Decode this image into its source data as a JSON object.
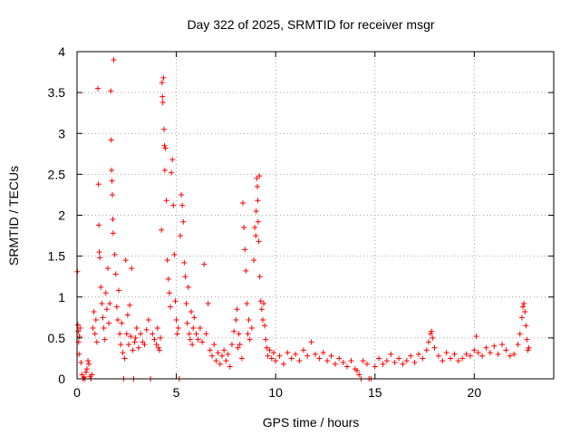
{
  "chart_data": {
    "type": "scatter",
    "title": "Day 322 of 2025, SRMTID for receiver msgr",
    "xlabel": "GPS time / hours",
    "ylabel": "SRMTID / TECUs",
    "xlim": [
      0,
      24
    ],
    "ylim": [
      0,
      4
    ],
    "xticks": [
      0,
      5,
      10,
      15,
      20
    ],
    "yticks": [
      0,
      0.5,
      1,
      1.5,
      2,
      2.5,
      3,
      3.5,
      4
    ],
    "grid": true,
    "marker": "plus",
    "color": "#ff0000",
    "series": [
      {
        "name": "SRMTID",
        "points": [
          [
            0.02,
            1.31
          ],
          [
            0.04,
            0.66
          ],
          [
            0.06,
            0.58
          ],
          [
            0.08,
            0.45
          ],
          [
            0.1,
            0.3
          ],
          [
            0.12,
            0.52
          ],
          [
            0.15,
            0.62
          ],
          [
            0.2,
            0.2
          ],
          [
            0.25,
            0.05
          ],
          [
            0.3,
            0.0
          ],
          [
            0.35,
            0.02
          ],
          [
            0.4,
            0.0
          ],
          [
            0.45,
            0.08
          ],
          [
            0.5,
            0.12
          ],
          [
            0.55,
            0.22
          ],
          [
            0.6,
            0.18
          ],
          [
            0.65,
            0.03
          ],
          [
            0.7,
            0.0
          ],
          [
            0.75,
            0.05
          ],
          [
            0.8,
            0.62
          ],
          [
            0.85,
            0.82
          ],
          [
            0.9,
            0.55
          ],
          [
            0.95,
            0.72
          ],
          [
            1.0,
            0.45
          ],
          [
            1.05,
            3.55
          ],
          [
            1.08,
            2.38
          ],
          [
            1.1,
            1.88
          ],
          [
            1.12,
            1.55
          ],
          [
            1.15,
            1.48
          ],
          [
            1.2,
            1.12
          ],
          [
            1.25,
            0.92
          ],
          [
            1.3,
            0.75
          ],
          [
            1.35,
            0.62
          ],
          [
            1.4,
            0.48
          ],
          [
            1.45,
            1.05
          ],
          [
            1.5,
            0.85
          ],
          [
            1.55,
            1.35
          ],
          [
            1.6,
            0.68
          ],
          [
            1.65,
            0.92
          ],
          [
            1.7,
            3.52
          ],
          [
            1.72,
            2.92
          ],
          [
            1.74,
            2.55
          ],
          [
            1.76,
            2.42
          ],
          [
            1.78,
            2.25
          ],
          [
            1.8,
            1.95
          ],
          [
            1.82,
            1.78
          ],
          [
            1.85,
            3.9
          ],
          [
            1.9,
            1.52
          ],
          [
            1.95,
            1.28
          ],
          [
            2.0,
            0.88
          ],
          [
            2.05,
            0.72
          ],
          [
            2.1,
            1.08
          ],
          [
            2.15,
            0.55
          ],
          [
            2.2,
            0.42
          ],
          [
            2.25,
            0.68
          ],
          [
            2.3,
            0.32
          ],
          [
            2.35,
            0.0
          ],
          [
            2.4,
            0.25
          ],
          [
            2.45,
            1.45
          ],
          [
            2.5,
            0.55
          ],
          [
            2.55,
            0.78
          ],
          [
            2.6,
            0.42
          ],
          [
            2.65,
            0.9
          ],
          [
            2.7,
            0.52
          ],
          [
            2.75,
            1.35
          ],
          [
            2.8,
            0.35
          ],
          [
            2.85,
            0.0
          ],
          [
            2.9,
            0.45
          ],
          [
            2.95,
            0.5
          ],
          [
            3.0,
            0.62
          ],
          [
            3.1,
            0.38
          ],
          [
            3.2,
            0.55
          ],
          [
            3.3,
            0.45
          ],
          [
            3.4,
            0.42
          ],
          [
            3.5,
            0.6
          ],
          [
            3.6,
            0.72
          ],
          [
            3.7,
            0.0
          ],
          [
            3.8,
            0.55
          ],
          [
            3.9,
            0.48
          ],
          [
            4.0,
            0.42
          ],
          [
            4.05,
            0.62
          ],
          [
            4.1,
            0.38
          ],
          [
            4.15,
            0.35
          ],
          [
            4.2,
            0.5
          ],
          [
            4.25,
            1.82
          ],
          [
            4.28,
            3.62
          ],
          [
            4.3,
            3.45
          ],
          [
            4.32,
            3.38
          ],
          [
            4.35,
            3.68
          ],
          [
            4.38,
            3.05
          ],
          [
            4.4,
            2.85
          ],
          [
            4.42,
            2.55
          ],
          [
            4.45,
            2.82
          ],
          [
            4.5,
            2.18
          ],
          [
            4.55,
            1.45
          ],
          [
            4.6,
            1.22
          ],
          [
            4.65,
            1.05
          ],
          [
            4.7,
            0.88
          ],
          [
            4.75,
            2.52
          ],
          [
            4.8,
            2.68
          ],
          [
            4.85,
            2.12
          ],
          [
            4.9,
            1.52
          ],
          [
            4.95,
            0.95
          ],
          [
            5.0,
            0.72
          ],
          [
            5.05,
            0.55
          ],
          [
            5.1,
            0.62
          ],
          [
            5.15,
            0.0
          ],
          [
            5.2,
            1.75
          ],
          [
            5.25,
            2.25
          ],
          [
            5.3,
            2.12
          ],
          [
            5.35,
            1.92
          ],
          [
            5.4,
            1.42
          ],
          [
            5.45,
            1.25
          ],
          [
            5.5,
            0.92
          ],
          [
            5.55,
            0.68
          ],
          [
            5.6,
            1.12
          ],
          [
            5.65,
            0.55
          ],
          [
            5.7,
            0.48
          ],
          [
            5.75,
            0.82
          ],
          [
            5.8,
            0.42
          ],
          [
            5.85,
            0.62
          ],
          [
            5.9,
            0.75
          ],
          [
            6.0,
            0.55
          ],
          [
            6.1,
            0.48
          ],
          [
            6.2,
            0.62
          ],
          [
            6.3,
            0.45
          ],
          [
            6.4,
            1.4
          ],
          [
            6.5,
            0.55
          ],
          [
            6.6,
            0.92
          ],
          [
            6.7,
            0.35
          ],
          [
            6.8,
            0.28
          ],
          [
            6.9,
            0.42
          ],
          [
            7.0,
            0.22
          ],
          [
            7.1,
            0.32
          ],
          [
            7.2,
            0.18
          ],
          [
            7.3,
            0.28
          ],
          [
            7.4,
            0.35
          ],
          [
            7.5,
            0.22
          ],
          [
            7.6,
            0.3
          ],
          [
            7.7,
            0.15
          ],
          [
            7.8,
            0.42
          ],
          [
            7.9,
            0.58
          ],
          [
            8.0,
            0.72
          ],
          [
            8.05,
            0.85
          ],
          [
            8.1,
            0.38
          ],
          [
            8.15,
            0.55
          ],
          [
            8.2,
            0.42
          ],
          [
            8.3,
            0.25
          ],
          [
            8.35,
            2.15
          ],
          [
            8.4,
            1.85
          ],
          [
            8.45,
            1.58
          ],
          [
            8.5,
            1.32
          ],
          [
            8.55,
            0.92
          ],
          [
            8.6,
            0.55
          ],
          [
            8.65,
            0.72
          ],
          [
            8.7,
            0.48
          ],
          [
            8.8,
            0.62
          ],
          [
            8.9,
            1.45
          ],
          [
            8.95,
            1.85
          ],
          [
            9.0,
            1.75
          ],
          [
            9.02,
            2.05
          ],
          [
            9.05,
            2.45
          ],
          [
            9.08,
            2.35
          ],
          [
            9.1,
            2.18
          ],
          [
            9.12,
            1.92
          ],
          [
            9.15,
            1.68
          ],
          [
            9.18,
            2.48
          ],
          [
            9.2,
            1.25
          ],
          [
            9.25,
            0.95
          ],
          [
            9.3,
            0.85
          ],
          [
            9.35,
            0.72
          ],
          [
            9.4,
            0.92
          ],
          [
            9.45,
            0.65
          ],
          [
            9.5,
            0.48
          ],
          [
            9.55,
            0.38
          ],
          [
            9.6,
            0.28
          ],
          [
            9.7,
            0.35
          ],
          [
            9.8,
            0.25
          ],
          [
            9.9,
            0.32
          ],
          [
            10.0,
            0.22
          ],
          [
            10.2,
            0.28
          ],
          [
            10.4,
            0.18
          ],
          [
            10.6,
            0.32
          ],
          [
            10.8,
            0.25
          ],
          [
            11.0,
            0.3
          ],
          [
            11.2,
            0.22
          ],
          [
            11.4,
            0.35
          ],
          [
            11.6,
            0.28
          ],
          [
            11.8,
            0.45
          ],
          [
            12.0,
            0.3
          ],
          [
            12.2,
            0.25
          ],
          [
            12.4,
            0.32
          ],
          [
            12.6,
            0.22
          ],
          [
            12.8,
            0.28
          ],
          [
            13.0,
            0.18
          ],
          [
            13.2,
            0.25
          ],
          [
            13.4,
            0.2
          ],
          [
            13.6,
            0.15
          ],
          [
            13.8,
            0.22
          ],
          [
            14.0,
            0.12
          ],
          [
            14.1,
            0.1
          ],
          [
            14.2,
            0.05
          ],
          [
            14.3,
            0.0
          ],
          [
            14.4,
            0.22
          ],
          [
            14.6,
            0.18
          ],
          [
            14.7,
            0.0
          ],
          [
            14.8,
            0.0
          ],
          [
            15.0,
            0.15
          ],
          [
            15.2,
            0.25
          ],
          [
            15.4,
            0.18
          ],
          [
            15.6,
            0.22
          ],
          [
            15.8,
            0.3
          ],
          [
            16.0,
            0.2
          ],
          [
            16.2,
            0.25
          ],
          [
            16.4,
            0.18
          ],
          [
            16.6,
            0.22
          ],
          [
            16.8,
            0.28
          ],
          [
            17.0,
            0.2
          ],
          [
            17.2,
            0.3
          ],
          [
            17.4,
            0.25
          ],
          [
            17.6,
            0.35
          ],
          [
            17.7,
            0.45
          ],
          [
            17.8,
            0.55
          ],
          [
            17.85,
            0.58
          ],
          [
            17.9,
            0.5
          ],
          [
            18.0,
            0.38
          ],
          [
            18.2,
            0.28
          ],
          [
            18.4,
            0.22
          ],
          [
            18.6,
            0.32
          ],
          [
            18.8,
            0.25
          ],
          [
            19.0,
            0.3
          ],
          [
            19.2,
            0.22
          ],
          [
            19.4,
            0.25
          ],
          [
            19.6,
            0.3
          ],
          [
            19.8,
            0.28
          ],
          [
            20.0,
            0.35
          ],
          [
            20.1,
            0.52
          ],
          [
            20.2,
            0.32
          ],
          [
            20.4,
            0.28
          ],
          [
            20.6,
            0.38
          ],
          [
            20.8,
            0.32
          ],
          [
            21.0,
            0.4
          ],
          [
            21.2,
            0.3
          ],
          [
            21.4,
            0.42
          ],
          [
            21.6,
            0.35
          ],
          [
            21.8,
            0.28
          ],
          [
            22.0,
            0.3
          ],
          [
            22.2,
            0.42
          ],
          [
            22.3,
            0.55
          ],
          [
            22.4,
            0.75
          ],
          [
            22.45,
            0.88
          ],
          [
            22.5,
            0.92
          ],
          [
            22.55,
            0.82
          ],
          [
            22.6,
            0.65
          ],
          [
            22.65,
            0.48
          ],
          [
            22.7,
            0.35
          ],
          [
            22.75,
            0.38
          ]
        ]
      }
    ]
  }
}
